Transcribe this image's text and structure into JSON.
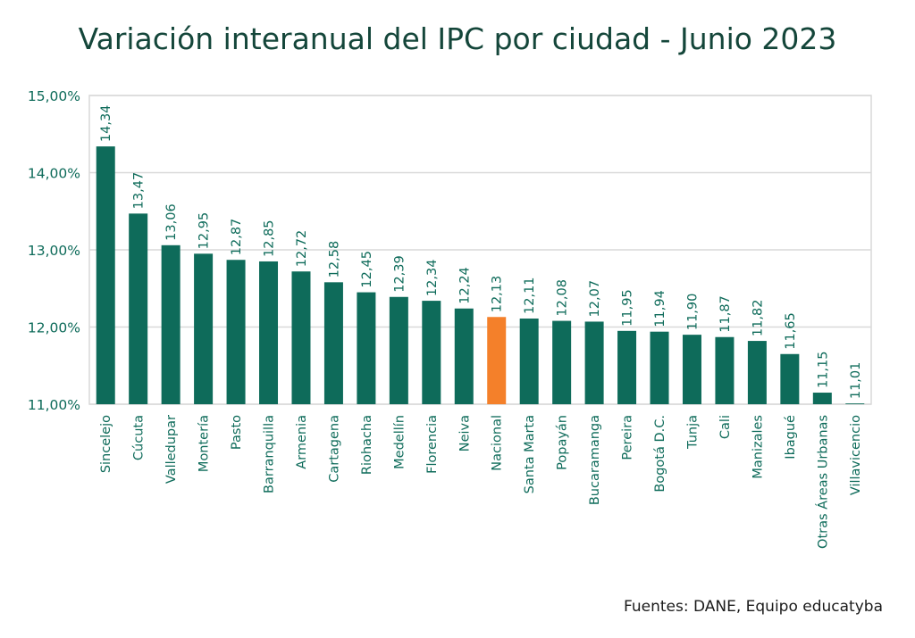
{
  "source": "Fuentes: DANE, Equipo educatyba",
  "colors": {
    "bar": "#0e6b5a",
    "highlight": "#f4802a",
    "axis_text": "#0e6b5a",
    "label_text": "#0e6b5a",
    "grid": "#d9d9d9",
    "title": "#14463a"
  },
  "chart_data": {
    "type": "bar",
    "title": "Variación interanual del IPC por ciudad - Junio 2023",
    "xlabel": "",
    "ylabel": "",
    "ylim": [
      11,
      15
    ],
    "yticks": [
      11,
      12,
      13,
      14,
      15
    ],
    "ytick_labels": [
      "11,00%",
      "12,00%",
      "13,00%",
      "14,00%",
      "15,00%"
    ],
    "grid": true,
    "legend": "none",
    "highlight_category": "Nacional",
    "categories": [
      "Sincelejo",
      "Cúcuta",
      "Valledupar",
      "Montería",
      "Pasto",
      "Barranquilla",
      "Armenia",
      "Cartagena",
      "Riohacha",
      "Medellín",
      "Florencia",
      "Neiva",
      "Nacional",
      "Santa Marta",
      "Popayán",
      "Bucaramanga",
      "Pereira",
      "Bogotá D.C.",
      "Tunja",
      "Cali",
      "Manizales",
      "Ibagué",
      "Otras Áreas Urbanas",
      "Villavicencio"
    ],
    "values": [
      14.34,
      13.47,
      13.06,
      12.95,
      12.87,
      12.85,
      12.72,
      12.58,
      12.45,
      12.39,
      12.34,
      12.24,
      12.13,
      12.11,
      12.08,
      12.07,
      11.95,
      11.94,
      11.9,
      11.87,
      11.82,
      11.65,
      11.15,
      11.01
    ],
    "value_labels": [
      "14,34",
      "13,47",
      "13,06",
      "12,95",
      "12,87",
      "12,85",
      "12,72",
      "12,58",
      "12,45",
      "12,39",
      "12,34",
      "12,24",
      "12,13",
      "12,11",
      "12,08",
      "12,07",
      "11,95",
      "11,94",
      "11,90",
      "11,87",
      "11,82",
      "11,65",
      "11,15",
      "11,01"
    ]
  }
}
